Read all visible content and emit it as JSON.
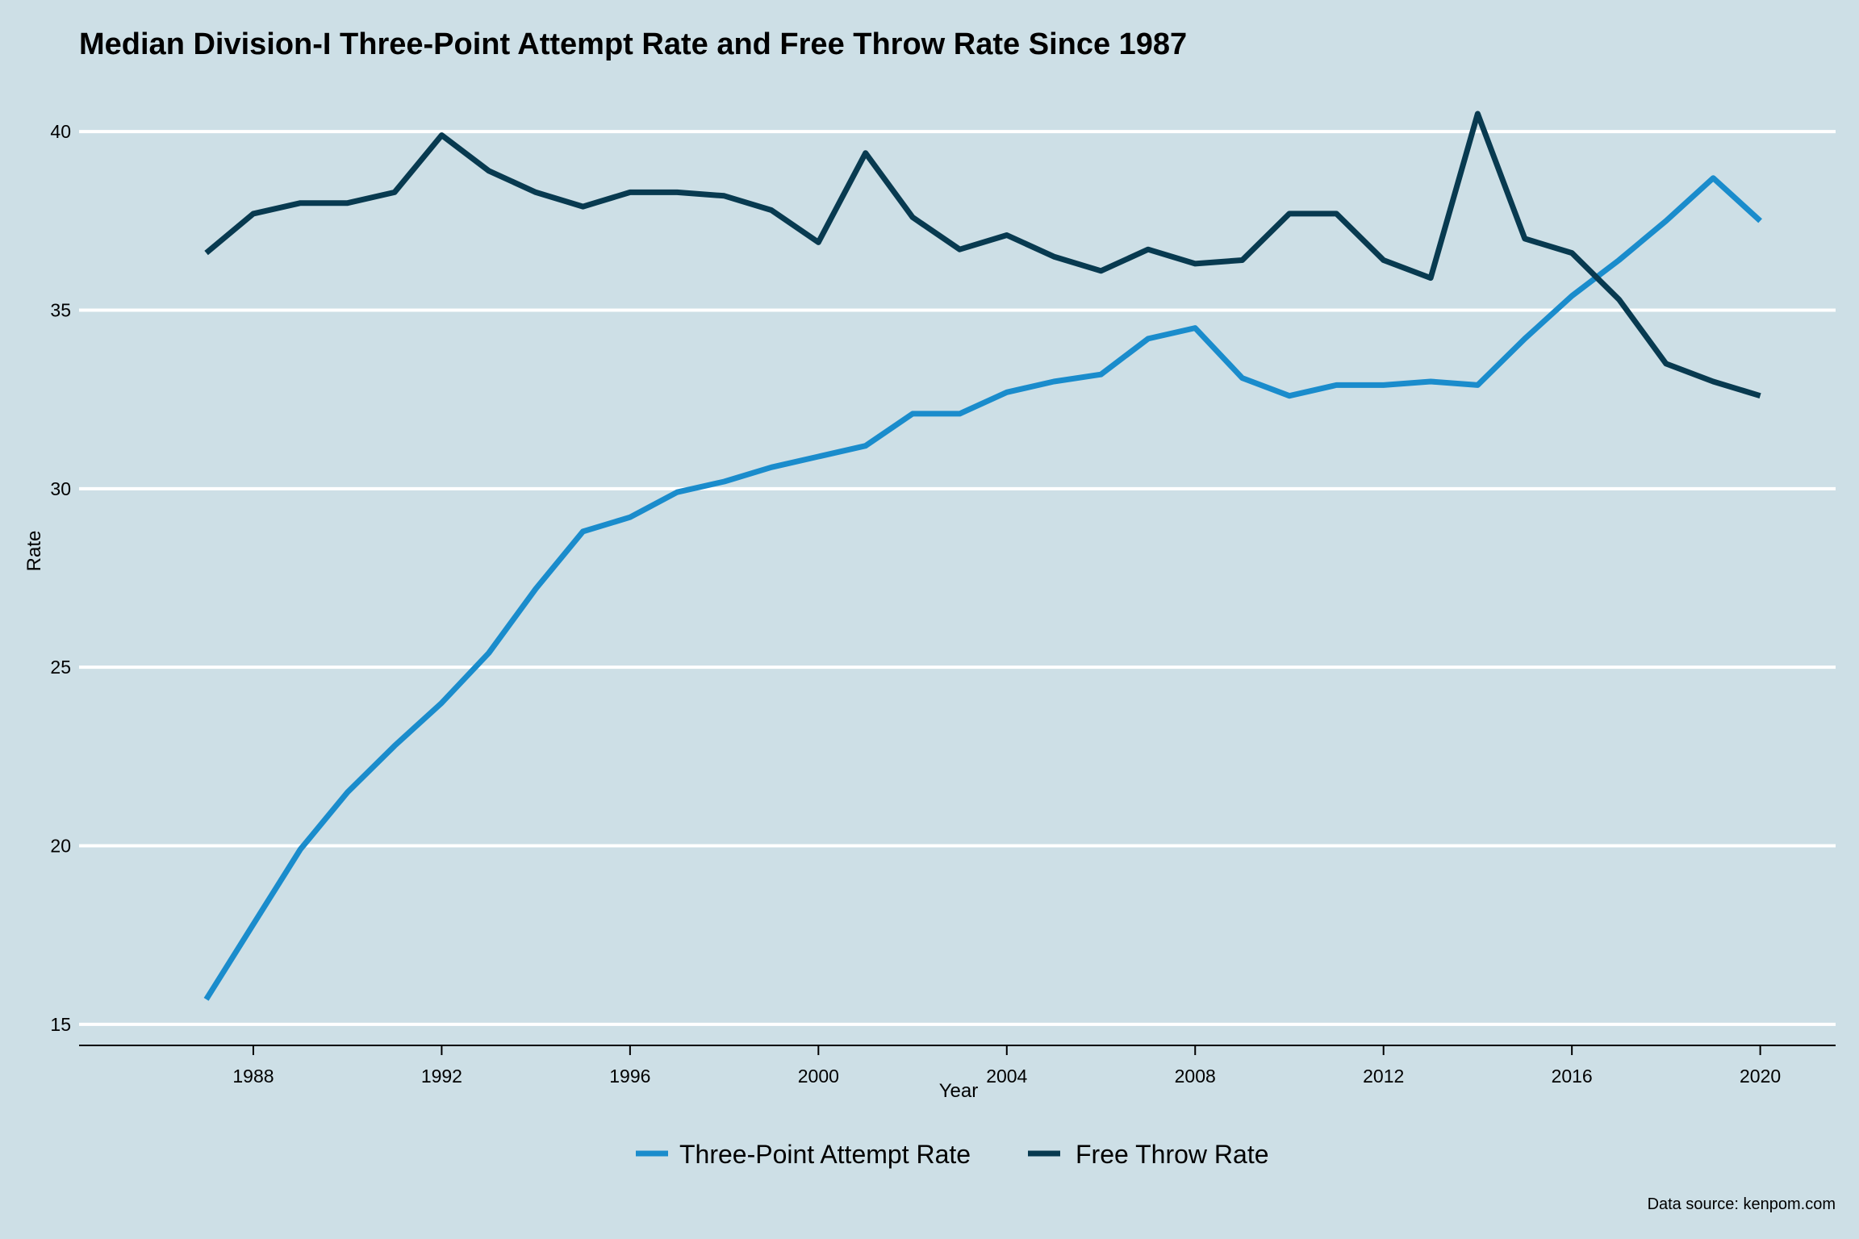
{
  "chart_data": {
    "type": "line",
    "title": "Median Division-I Three-Point Attempt Rate and Free Throw Rate Since 1987",
    "xlabel": "Year",
    "ylabel": "Rate",
    "caption": "Data source: kenpom.com",
    "xlim": [
      1984.3,
      2021.6
    ],
    "ylim": [
      14.5,
      41.2
    ],
    "x_ticks": [
      1988,
      1992,
      1996,
      2000,
      2004,
      2008,
      2012,
      2016,
      2020
    ],
    "y_ticks": [
      15,
      20,
      25,
      30,
      35,
      40
    ],
    "grid": "horizontal major only",
    "legend_position": "bottom",
    "colors": {
      "background": "#cddfe6",
      "grid": "#ffffff"
    },
    "x": [
      1987,
      1988,
      1989,
      1990,
      1991,
      1992,
      1993,
      1994,
      1995,
      1996,
      1997,
      1998,
      1999,
      2000,
      2001,
      2002,
      2003,
      2004,
      2005,
      2006,
      2007,
      2008,
      2009,
      2010,
      2011,
      2012,
      2013,
      2014,
      2015,
      2016,
      2017,
      2018,
      2019,
      2020
    ],
    "series": [
      {
        "name": "Three-Point Attempt Rate",
        "color": "#1a8ccc",
        "values": [
          15.7,
          17.8,
          19.9,
          21.5,
          22.8,
          24.0,
          25.4,
          27.2,
          28.8,
          29.2,
          29.9,
          30.2,
          30.6,
          30.9,
          31.2,
          32.1,
          32.1,
          32.7,
          33.0,
          33.2,
          34.2,
          34.5,
          33.1,
          32.6,
          32.9,
          32.9,
          33.0,
          32.9,
          34.2,
          35.4,
          36.4,
          37.5,
          38.7,
          37.5
        ]
      },
      {
        "name": "Free Throw Rate",
        "color": "#083a50",
        "values": [
          36.6,
          37.7,
          38.0,
          38.0,
          38.3,
          39.9,
          38.9,
          38.3,
          37.9,
          38.3,
          38.3,
          38.2,
          37.8,
          36.9,
          39.4,
          37.6,
          36.7,
          37.1,
          36.5,
          36.1,
          36.7,
          36.3,
          36.4,
          37.7,
          37.7,
          36.4,
          35.9,
          40.5,
          37.0,
          36.6,
          35.3,
          33.5,
          33.0,
          32.6
        ]
      }
    ]
  }
}
